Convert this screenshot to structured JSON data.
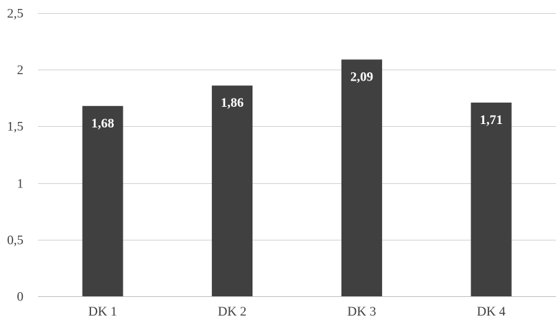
{
  "chart_data": {
    "type": "bar",
    "title": "",
    "xlabel": "",
    "ylabel": "",
    "categories": [
      "DK 1",
      "DK 2",
      "DK 3",
      "DK 4"
    ],
    "values": [
      1.68,
      1.86,
      2.09,
      1.71
    ],
    "value_labels": [
      "1,68",
      "1,86",
      "2,09",
      "1,71"
    ],
    "ylim": [
      0,
      2.5
    ],
    "y_ticks": [
      0,
      0.5,
      1,
      1.5,
      2,
      2.5
    ],
    "y_tick_labels": [
      "0",
      "0,5",
      "1",
      "1,5",
      "2",
      "2,5"
    ],
    "grid": true,
    "legend": "none",
    "bar_color": "#404040",
    "label_color": "#ffffff",
    "grid_color": "#d0d0d0"
  }
}
